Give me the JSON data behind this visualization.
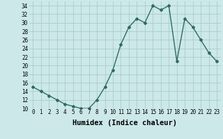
{
  "x": [
    0,
    1,
    2,
    3,
    4,
    5,
    6,
    7,
    8,
    9,
    10,
    11,
    12,
    13,
    14,
    15,
    16,
    17,
    18,
    19,
    20,
    21,
    22,
    23
  ],
  "y": [
    15,
    14,
    13,
    12,
    11,
    10.5,
    10,
    10,
    12,
    15,
    19,
    25,
    29,
    31,
    30,
    34,
    33,
    34,
    21,
    31,
    29,
    26,
    23,
    21
  ],
  "line_color": "#2e6b5e",
  "marker": "D",
  "marker_size": 2.0,
  "bg_color": "#cce8e8",
  "grid_color": "#aacccc",
  "xlabel": "Humidex (Indice chaleur)",
  "ylim": [
    10,
    35
  ],
  "yticks": [
    10,
    12,
    14,
    16,
    18,
    20,
    22,
    24,
    26,
    28,
    30,
    32,
    34
  ],
  "xlim": [
    -0.5,
    23.5
  ],
  "xticks": [
    0,
    1,
    2,
    3,
    4,
    5,
    6,
    7,
    8,
    9,
    10,
    11,
    12,
    13,
    14,
    15,
    16,
    17,
    18,
    19,
    20,
    21,
    22,
    23
  ],
  "xlabel_fontsize": 7.5,
  "tick_fontsize": 5.5,
  "line_width": 1.0
}
